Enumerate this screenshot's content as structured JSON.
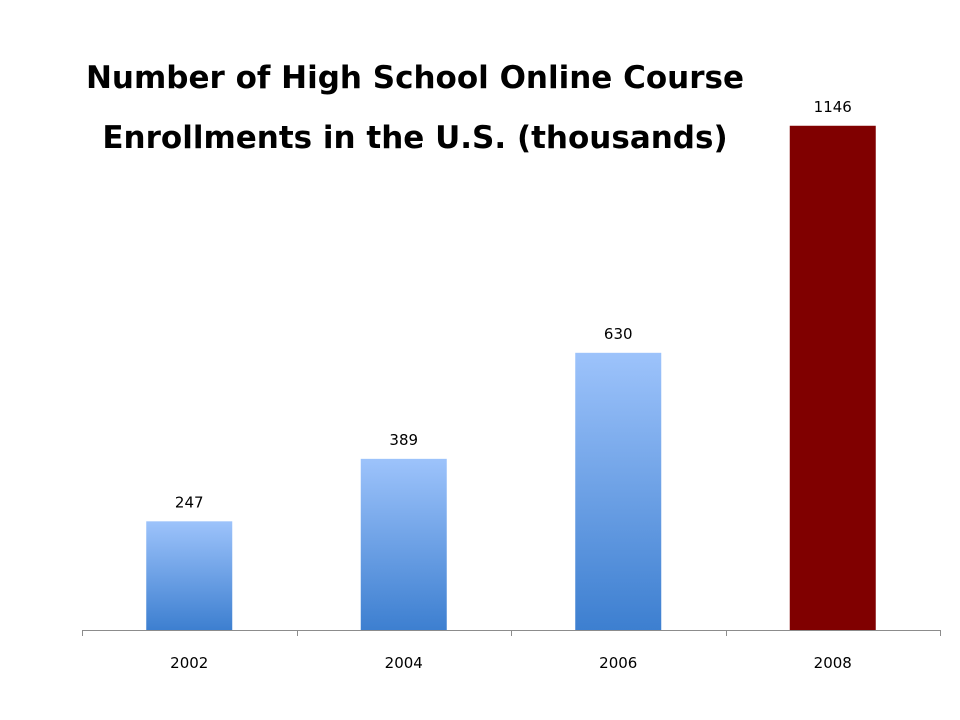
{
  "chart_data": {
    "type": "bar",
    "title": "Number of High School Online Course Enrollments in the U.S. (thousands)",
    "categories": [
      "2002",
      "2004",
      "2006",
      "2008"
    ],
    "values": [
      247,
      389,
      630,
      1146
    ],
    "data_labels": [
      "247",
      "389",
      "630",
      "1146"
    ],
    "ylim": [
      0,
      1200
    ],
    "xlabel": "",
    "ylabel": "",
    "grid": false,
    "legend": "none",
    "colors": {
      "bar_gradient_top": "#9dc3fb",
      "bar_gradient_bottom": "#3d7fd0",
      "highlight_bar": "#800000",
      "axis": "#8c8c8c"
    },
    "highlight_index": 3
  }
}
